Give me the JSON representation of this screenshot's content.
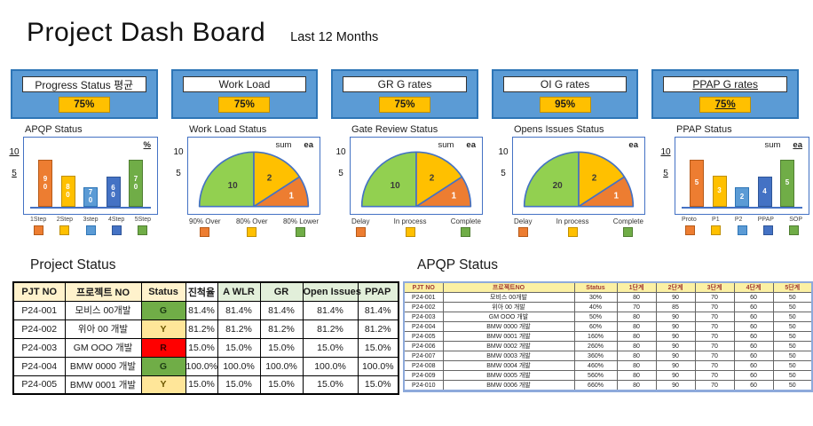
{
  "header": {
    "title": "Project Dash Board",
    "subtitle": "Last 12 Months"
  },
  "kpi_cards": [
    {
      "title": "Progress Status 평균",
      "value": "75%"
    },
    {
      "title": "Work Load",
      "value": "75%"
    },
    {
      "title": "GR G rates",
      "value": "75%"
    },
    {
      "title": "OI G rates",
      "value": "95%"
    },
    {
      "title": "PPAP G rates",
      "value": "75%"
    }
  ],
  "colors": {
    "card_blue": "#5B9BD5",
    "card_border": "#2E75B6",
    "value_gold": "#FFC000",
    "chart_border": "#4472C4",
    "orange": "#ED7D31",
    "gold": "#FFC000",
    "light_blue": "#5B9BD5",
    "dark_blue": "#4472C4",
    "green": "#70AD47",
    "gauge_green": "#92D050",
    "status_green": "#70AD47",
    "status_yellow": "#FFE699",
    "status_red": "#FF0000"
  },
  "chart_data": [
    {
      "type": "bar",
      "title": "APQP Status",
      "unit": "%",
      "yticks": [
        10,
        5
      ],
      "categories": [
        "1Step",
        "2Step",
        "3step",
        "4Step",
        "5Step"
      ],
      "values": [
        90,
        80,
        70,
        60,
        70
      ]
    },
    {
      "type": "pie",
      "subtype": "half-gauge",
      "title": "Work Load Status",
      "annotation": "sum",
      "unit": "ea",
      "yticks": [
        10,
        5
      ],
      "slices": [
        {
          "label": "80% Lower",
          "value": 10
        },
        {
          "label": "80% Over",
          "value": 2
        },
        {
          "label": "90% Over",
          "value": 1
        }
      ],
      "legend": [
        "90% Over",
        "80% Over",
        "80% Lower"
      ]
    },
    {
      "type": "pie",
      "subtype": "half-gauge",
      "title": "Gate Review Status",
      "annotation": "sum",
      "unit": "ea",
      "yticks": [
        10,
        5
      ],
      "slices": [
        {
          "label": "Complete",
          "value": 10
        },
        {
          "label": "In process",
          "value": 2
        },
        {
          "label": "Delay",
          "value": 1
        }
      ],
      "legend": [
        "Delay",
        "In process",
        "Complete"
      ]
    },
    {
      "type": "pie",
      "subtype": "half-gauge",
      "title": "Opens Issues Status",
      "unit": "ea",
      "yticks": [
        10,
        5
      ],
      "slices": [
        {
          "label": "Complete",
          "value": 20
        },
        {
          "label": "In process",
          "value": 2
        },
        {
          "label": "Delay",
          "value": 1
        }
      ],
      "legend": [
        "Delay",
        "In process",
        "Complete"
      ]
    },
    {
      "type": "bar",
      "title": "PPAP Status",
      "annotation": "sum",
      "unit": "ea",
      "yticks": [
        10,
        5
      ],
      "categories": [
        "Proto",
        "P1",
        "P2",
        "PPAP",
        "SOP"
      ],
      "values": [
        5,
        3,
        2,
        4,
        5
      ]
    }
  ],
  "charts": {
    "apqp": {
      "title": "APQP Status",
      "unit": "%",
      "yticks": [
        "10",
        "5"
      ],
      "categories": [
        "1Step",
        "2Step",
        "3step",
        "4Step",
        "5Step"
      ],
      "bars": [
        {
          "category": "1Step",
          "label": "90",
          "value": 90,
          "height_pct": 80,
          "color": "#ED7D31",
          "border_color": "#B55A19"
        },
        {
          "category": "2Step",
          "label": "80",
          "value": 80,
          "height_pct": 53,
          "color": "#FFC000",
          "border_color": "#BF8F00"
        },
        {
          "category": "3step",
          "label": "70",
          "value": 70,
          "height_pct": 34,
          "color": "#5B9BD5",
          "border_color": "#2E75B6"
        },
        {
          "category": "4Step",
          "label": "60",
          "value": 60,
          "height_pct": 51,
          "color": "#4472C4",
          "border_color": "#2F5597"
        },
        {
          "category": "5Step",
          "label": "70",
          "value": 70,
          "height_pct": 80,
          "color": "#70AD47",
          "border_color": "#507E32"
        }
      ],
      "legend": [
        {
          "color": "#ED7D31",
          "border_color": "#B55A19"
        },
        {
          "color": "#FFC000",
          "border_color": "#BF8F00"
        },
        {
          "color": "#5B9BD5",
          "border_color": "#2E75B6"
        },
        {
          "color": "#4472C4",
          "border_color": "#2F5597"
        },
        {
          "color": "#70AD47",
          "border_color": "#507E32"
        }
      ]
    },
    "workload": {
      "title": "Work Load Status",
      "annotation": "sum",
      "unit": "ea",
      "yticks": [
        "10",
        "5"
      ],
      "gauge": {
        "stroke": "#4472C4",
        "segments": [
          {
            "label": "80% Lower",
            "value": "10",
            "start_deg": 180,
            "end_deg": 90,
            "color": "#92D050",
            "label_color": "#3a3a3a",
            "label_r": 0.55
          },
          {
            "label": "80% Over",
            "value": "2",
            "start_deg": 90,
            "end_deg": 33,
            "color": "#FFC000",
            "label_color": "#3a3a3a",
            "label_r": 0.6
          },
          {
            "label": "90% Over",
            "value": "1",
            "start_deg": 33,
            "end_deg": 0,
            "color": "#ED7D31",
            "label_color": "#ffffff",
            "label_r": 0.72
          }
        ]
      },
      "legend": [
        {
          "label": "90% Over",
          "color": "#ED7D31",
          "border_color": "#B55A19"
        },
        {
          "label": "80% Over",
          "color": "#FFC000",
          "border_color": "#BF8F00"
        },
        {
          "label": "80% Lower",
          "color": "#70AD47",
          "border_color": "#507E32"
        }
      ]
    },
    "gatereview": {
      "title": "Gate Review Status",
      "annotation": "sum",
      "unit": "ea",
      "yticks": [
        "10",
        "5"
      ],
      "gauge": {
        "stroke": "#4472C4",
        "segments": [
          {
            "label": "Complete",
            "value": "10",
            "start_deg": 180,
            "end_deg": 90,
            "color": "#92D050",
            "label_color": "#3a3a3a",
            "label_r": 0.55
          },
          {
            "label": "In process",
            "value": "2",
            "start_deg": 90,
            "end_deg": 33,
            "color": "#FFC000",
            "label_color": "#3a3a3a",
            "label_r": 0.6
          },
          {
            "label": "Delay",
            "value": "1",
            "start_deg": 33,
            "end_deg": 0,
            "color": "#ED7D31",
            "label_color": "#ffffff",
            "label_r": 0.72
          }
        ]
      },
      "legend": [
        {
          "label": "Delay",
          "color": "#ED7D31",
          "border_color": "#B55A19"
        },
        {
          "label": "In process",
          "color": "#FFC000",
          "border_color": "#BF8F00"
        },
        {
          "label": "Complete",
          "color": "#70AD47",
          "border_color": "#507E32"
        }
      ]
    },
    "openissues": {
      "title": "Opens Issues Status",
      "unit": "ea",
      "yticks": [
        "10",
        "5"
      ],
      "gauge": {
        "stroke": "#4472C4",
        "segments": [
          {
            "label": "Complete",
            "value": "20",
            "start_deg": 180,
            "end_deg": 90,
            "color": "#92D050",
            "label_color": "#3a3a3a",
            "label_r": 0.55
          },
          {
            "label": "In process",
            "value": "2",
            "start_deg": 90,
            "end_deg": 33,
            "color": "#FFC000",
            "label_color": "#3a3a3a",
            "label_r": 0.6
          },
          {
            "label": "Delay",
            "value": "1",
            "start_deg": 33,
            "end_deg": 0,
            "color": "#ED7D31",
            "label_color": "#ffffff",
            "label_r": 0.72
          }
        ]
      },
      "legend": [
        {
          "label": "Delay",
          "color": "#ED7D31",
          "border_color": "#B55A19"
        },
        {
          "label": "In process",
          "color": "#FFC000",
          "border_color": "#BF8F00"
        },
        {
          "label": "Complete",
          "color": "#70AD47",
          "border_color": "#507E32"
        }
      ]
    },
    "ppap": {
      "title": "PPAP Status",
      "annotation": "sum",
      "unit": "ea",
      "yticks": [
        "10",
        "5"
      ],
      "categories": [
        "Proto",
        "P1",
        "P2",
        "PPAP",
        "SOP"
      ],
      "bars": [
        {
          "category": "Proto",
          "label": "5",
          "value": 5,
          "height_pct": 80,
          "color": "#ED7D31",
          "border_color": "#B55A19"
        },
        {
          "category": "P1",
          "label": "3",
          "value": 3,
          "height_pct": 53,
          "color": "#FFC000",
          "border_color": "#BF8F00"
        },
        {
          "category": "P2",
          "label": "2",
          "value": 2,
          "height_pct": 34,
          "color": "#5B9BD5",
          "border_color": "#2E75B6"
        },
        {
          "category": "PPAP",
          "label": "4",
          "value": 4,
          "height_pct": 52,
          "color": "#4472C4",
          "border_color": "#2F5597"
        },
        {
          "category": "SOP",
          "label": "5",
          "value": 5,
          "height_pct": 80,
          "color": "#70AD47",
          "border_color": "#507E32"
        }
      ],
      "legend": [
        {
          "color": "#ED7D31",
          "border_color": "#B55A19"
        },
        {
          "color": "#FFC000",
          "border_color": "#BF8F00"
        },
        {
          "color": "#5B9BD5",
          "border_color": "#2E75B6"
        },
        {
          "color": "#4472C4",
          "border_color": "#2F5597"
        },
        {
          "color": "#70AD47",
          "border_color": "#507E32"
        }
      ]
    }
  },
  "tables": {
    "project": {
      "section_title": "Project Status",
      "columns": [
        {
          "label": "PJT NO",
          "w": 58,
          "bg": "#FFF2CC"
        },
        {
          "label": "프로젝트 NO",
          "w": 86,
          "bg": "#FFF2CC"
        },
        {
          "label": "Status",
          "w": 50,
          "bg": "#FFF2CC"
        },
        {
          "label": "진척율",
          "w": 36,
          "bg": "#FFFFFF"
        },
        {
          "label": "A WLR",
          "w": 48,
          "bg": "#E2EFDA"
        },
        {
          "label": "GR",
          "w": 48,
          "bg": "#E2EFDA"
        },
        {
          "label": "Open Issues",
          "w": 62,
          "bg": "#E2EFDA"
        },
        {
          "label": "PPAP",
          "w": 46,
          "bg": "#E2EFDA"
        }
      ],
      "rows": [
        [
          "P24-001",
          "모비스 00개발",
          {
            "t": "G",
            "bg": "#70AD47",
            "color": "#1E3D14",
            "bold": true
          },
          "81.4%",
          "81.4%",
          "81.4%",
          "81.4%",
          "81.4%"
        ],
        [
          "P24-002",
          "위아 00 개발",
          {
            "t": "Y",
            "bg": "#FFE699",
            "color": "#6B5600",
            "bold": true
          },
          "81.2%",
          "81.2%",
          "81.2%",
          "81.2%",
          "81.2%"
        ],
        [
          "P24-003",
          "GM OOO 개발",
          {
            "t": "R",
            "bg": "#FF0000",
            "color": "#3D0000",
            "bold": true
          },
          "15.0%",
          "15.0%",
          "15.0%",
          "15.0%",
          "15.0%"
        ],
        [
          "P24-004",
          "BMW 0000 개발",
          {
            "t": "G",
            "bg": "#70AD47",
            "color": "#1E3D14",
            "bold": true
          },
          "100.0%",
          "100.0%",
          "100.0%",
          "100.0%",
          "100.0%"
        ],
        [
          "P24-005",
          "BMW 0001 개발",
          {
            "t": "Y",
            "bg": "#FFE699",
            "color": "#6B5600",
            "bold": true
          },
          "15.0%",
          "15.0%",
          "15.0%",
          "15.0%",
          "15.0%"
        ]
      ]
    },
    "apqp": {
      "section_title": "APQP Status",
      "columns": [
        {
          "label": "PJT NO",
          "w": 44
        },
        {
          "label": "프로젝트NO",
          "w": 148
        },
        {
          "label": "Status",
          "w": 48
        },
        {
          "label": "1단계",
          "w": 44
        },
        {
          "label": "2단계",
          "w": 44
        },
        {
          "label": "3단계",
          "w": 44
        },
        {
          "label": "4단계",
          "w": 44
        },
        {
          "label": "5단계",
          "w": 44
        }
      ],
      "rows": [
        [
          "P24-001",
          "모비스 00개발",
          "30%",
          "80",
          "90",
          "70",
          "60",
          "50"
        ],
        [
          "P24-002",
          "위아 00 개발",
          "40%",
          "70",
          "85",
          "70",
          "60",
          "50"
        ],
        [
          "P24-003",
          "GM OOO 개발",
          "50%",
          "80",
          "90",
          "70",
          "60",
          "50"
        ],
        [
          "P24-004",
          "BMW 0000 개발",
          "60%",
          "80",
          "90",
          "70",
          "60",
          "50"
        ],
        [
          "P24-005",
          "BMW 0001 개발",
          "160%",
          "80",
          "90",
          "70",
          "60",
          "50"
        ],
        [
          "P24-006",
          "BMW 0002 개발",
          "260%",
          "80",
          "90",
          "70",
          "60",
          "50"
        ],
        [
          "P24-007",
          "BMW 0003 개발",
          "360%",
          "80",
          "90",
          "70",
          "60",
          "50"
        ],
        [
          "P24-008",
          "BMW 0004 개발",
          "460%",
          "80",
          "90",
          "70",
          "60",
          "50"
        ],
        [
          "P24-009",
          "BMW 0005 개발",
          "560%",
          "80",
          "90",
          "70",
          "60",
          "50"
        ],
        [
          "P24-010",
          "BMW 0006 개발",
          "660%",
          "80",
          "90",
          "70",
          "60",
          "50"
        ]
      ]
    }
  }
}
